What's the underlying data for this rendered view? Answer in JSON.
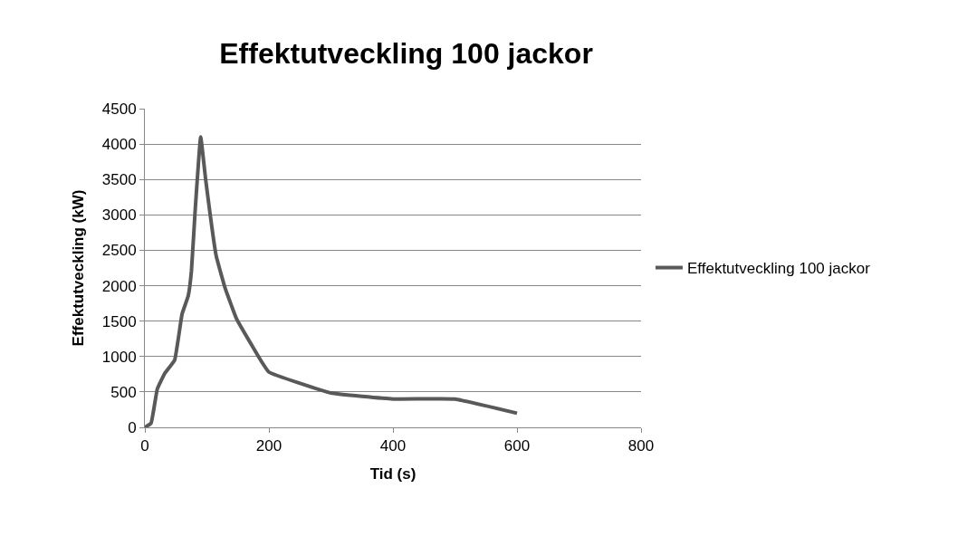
{
  "chart_data": {
    "type": "line",
    "title": "Effektutveckling 100 jackor",
    "xlabel": "Tid (s)",
    "ylabel": "Effektutveckling (kW)",
    "xlim": [
      0,
      800
    ],
    "xticks": [
      0,
      200,
      400,
      600,
      800
    ],
    "ylim": [
      0,
      4500
    ],
    "yticks": [
      0,
      500,
      1000,
      1500,
      2000,
      2500,
      3000,
      3500,
      4000,
      4500
    ],
    "grid": "y",
    "legend": "right",
    "marker": "none",
    "series": [
      {
        "name": "Effektutveckling 100 jackor",
        "color": "#595959",
        "x": [
          0,
          10,
          20,
          32,
          48,
          60,
          70,
          75,
          81,
          90,
          98,
          115,
          130,
          148,
          188,
          200,
          300,
          400,
          500,
          600
        ],
        "values": [
          0,
          60,
          540,
          760,
          950,
          1600,
          1860,
          2200,
          3050,
          4100,
          3500,
          2420,
          1950,
          1530,
          930,
          780,
          485,
          400,
          400,
          200
        ]
      }
    ]
  }
}
